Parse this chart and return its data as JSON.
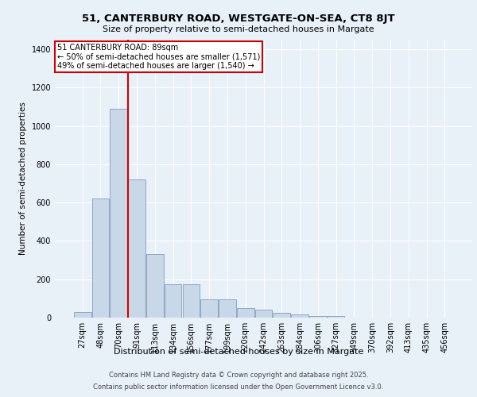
{
  "title_line1": "51, CANTERBURY ROAD, WESTGATE-ON-SEA, CT8 8JT",
  "title_line2": "Size of property relative to semi-detached houses in Margate",
  "xlabel": "Distribution of semi-detached houses by size in Margate",
  "ylabel": "Number of semi-detached properties",
  "categories": [
    "27sqm",
    "48sqm",
    "70sqm",
    "91sqm",
    "113sqm",
    "134sqm",
    "156sqm",
    "177sqm",
    "199sqm",
    "220sqm",
    "242sqm",
    "263sqm",
    "284sqm",
    "306sqm",
    "327sqm",
    "349sqm",
    "370sqm",
    "392sqm",
    "413sqm",
    "435sqm",
    "456sqm"
  ],
  "values": [
    30,
    620,
    1090,
    720,
    330,
    175,
    175,
    95,
    95,
    50,
    40,
    25,
    15,
    10,
    10,
    0,
    0,
    0,
    0,
    0,
    0
  ],
  "bar_color": "#c8d8e8",
  "bar_edge_color": "#7090b0",
  "annotation_line1": "51 CANTERBURY ROAD: 89sqm",
  "annotation_line2": "← 50% of semi-detached houses are smaller (1,571)",
  "annotation_line3": "49% of semi-detached houses are larger (1,540) →",
  "redline_x": 2.5,
  "ylim": [
    0,
    1450
  ],
  "yticks": [
    0,
    200,
    400,
    600,
    800,
    1000,
    1200,
    1400
  ],
  "footer_line1": "Contains HM Land Registry data © Crown copyright and database right 2025.",
  "footer_line2": "Contains public sector information licensed under the Open Government Licence v3.0.",
  "background_color": "#e8f0f8",
  "plot_background": "#e8f0f8",
  "grid_color": "#ffffff",
  "annotation_box_color": "#ffffff",
  "annotation_box_edge": "#cc0000",
  "redline_color": "#cc0000",
  "title1_fontsize": 9.5,
  "title2_fontsize": 8.0,
  "ylabel_fontsize": 7.5,
  "xlabel_fontsize": 8.0,
  "tick_fontsize": 7.0,
  "annotation_fontsize": 7.0,
  "footer_fontsize": 6.0
}
